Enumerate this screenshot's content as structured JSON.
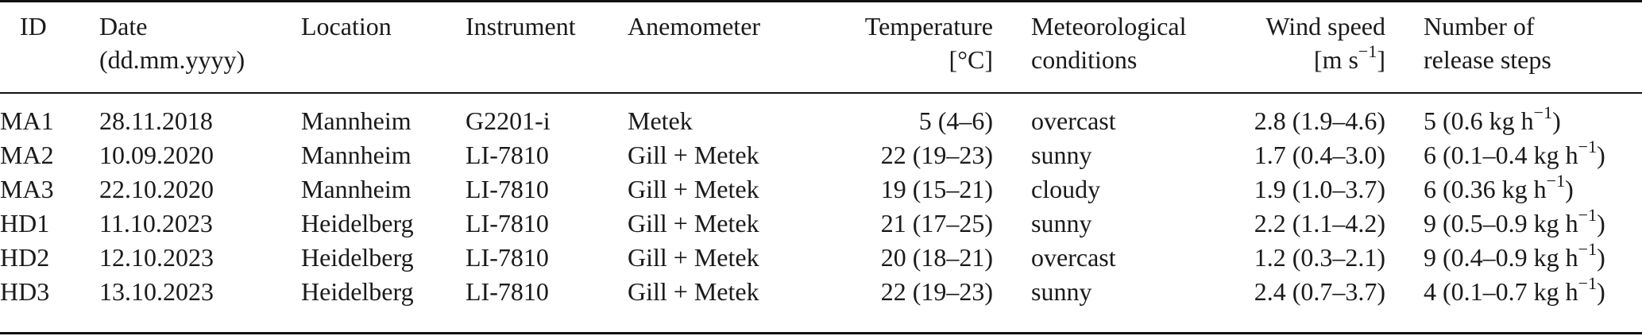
{
  "table": {
    "columns": [
      {
        "line1": "ID",
        "line2": ""
      },
      {
        "line1": "Date",
        "line2": "(dd.mm.yyyy)"
      },
      {
        "line1": "Location",
        "line2": ""
      },
      {
        "line1": "Instrument",
        "line2": ""
      },
      {
        "line1": "Anemometer",
        "line2": ""
      },
      {
        "line1": "Temperature",
        "line2": "[°C]"
      },
      {
        "line1": "Meteorological",
        "line2": "conditions"
      },
      {
        "line1": "Wind speed",
        "line2": "[m s",
        "line2_sup": "−1",
        "line2_end": "]"
      },
      {
        "line1": "Number of",
        "line2": "release steps"
      }
    ],
    "rows": [
      {
        "id": "MA1",
        "date": "28.11.2018",
        "location": "Mannheim",
        "instrument": "G2201-i",
        "anemometer": "Metek",
        "temperature": "5 (4–6)",
        "conditions": "overcast",
        "wind": "2.8 (1.9–4.6)",
        "release_pre": "5 (0.6 kg h",
        "release_sup": "−1",
        "release_post": ")"
      },
      {
        "id": "MA2",
        "date": "10.09.2020",
        "location": "Mannheim",
        "instrument": "LI-7810",
        "anemometer": "Gill + Metek",
        "temperature": "22 (19–23)",
        "conditions": "sunny",
        "wind": "1.7 (0.4–3.0)",
        "release_pre": "6 (0.1–0.4 kg h",
        "release_sup": "−1",
        "release_post": ")"
      },
      {
        "id": "MA3",
        "date": "22.10.2020",
        "location": "Mannheim",
        "instrument": "LI-7810",
        "anemometer": "Gill + Metek",
        "temperature": "19 (15–21)",
        "conditions": "cloudy",
        "wind": "1.9 (1.0–3.7)",
        "release_pre": "6 (0.36 kg h",
        "release_sup": "−1",
        "release_post": ")"
      },
      {
        "id": "HD1",
        "date": "11.10.2023",
        "location": "Heidelberg",
        "instrument": "LI-7810",
        "anemometer": "Gill + Metek",
        "temperature": "21 (17–25)",
        "conditions": "sunny",
        "wind": "2.2 (1.1–4.2)",
        "release_pre": "9 (0.5–0.9 kg h",
        "release_sup": "−1",
        "release_post": ")"
      },
      {
        "id": "HD2",
        "date": "12.10.2023",
        "location": "Heidelberg",
        "instrument": "LI-7810",
        "anemometer": "Gill + Metek",
        "temperature": "20 (18–21)",
        "conditions": "overcast",
        "wind": "1.2 (0.3–2.1)",
        "release_pre": "9 (0.4–0.9 kg h",
        "release_sup": "−1",
        "release_post": ")"
      },
      {
        "id": "HD3",
        "date": "13.10.2023",
        "location": "Heidelberg",
        "instrument": "LI-7810",
        "anemometer": "Gill + Metek",
        "temperature": "22 (19–23)",
        "conditions": "sunny",
        "wind": "2.4 (0.7–3.7)",
        "release_pre": "4 (0.1–0.7 kg h",
        "release_sup": "−1",
        "release_post": ")"
      }
    ]
  }
}
